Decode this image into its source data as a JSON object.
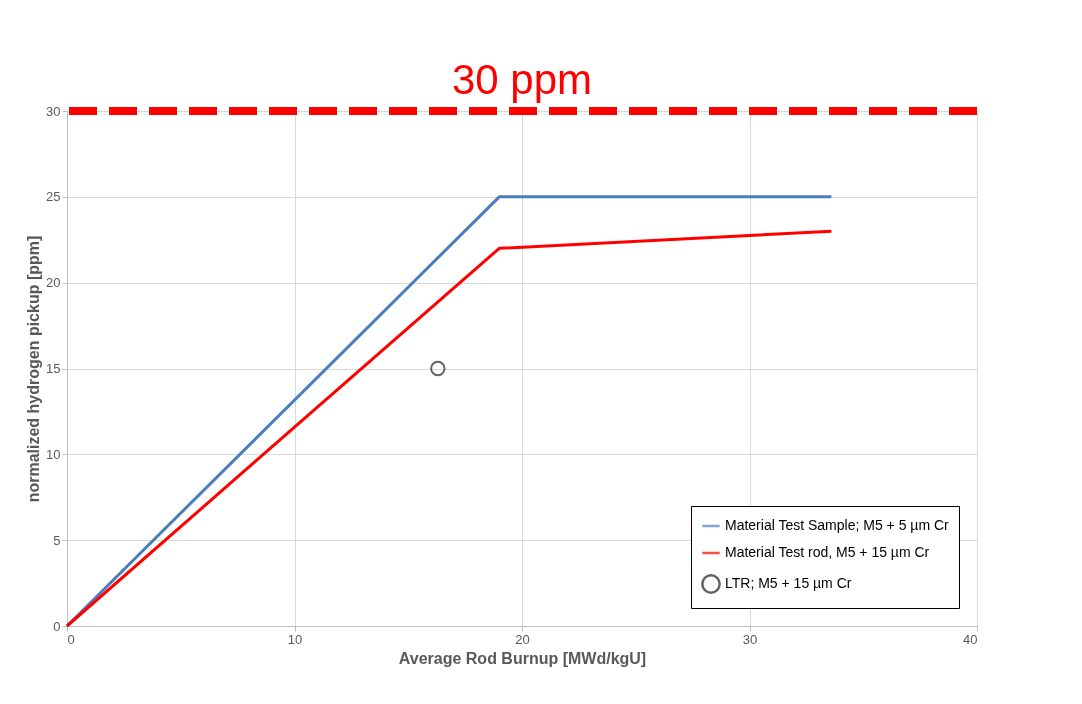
{
  "chart_data": {
    "type": "line",
    "xlabel": "Average Rod Burnup [MWd/kgU]",
    "ylabel": "normalized hydrogen pickup [ppm]",
    "xlim": [
      0,
      40
    ],
    "xticks": [
      0,
      10,
      20,
      30,
      40
    ],
    "ylim": [
      0,
      30
    ],
    "yticks": [
      0,
      5,
      10,
      15,
      20,
      25,
      30
    ],
    "grid": true,
    "legend": "bottom right",
    "series": [
      {
        "name": "Material Test Sample; M5 + 5 µm Cr",
        "color": "#4a7ebb",
        "type": "line",
        "marker": "none",
        "x": [
          0,
          19,
          33.6
        ],
        "values": [
          0,
          25,
          25
        ]
      },
      {
        "name": "Material Test rod, M5 + 15 µm Cr",
        "color": "#ff0000",
        "type": "line",
        "marker": "none",
        "x": [
          0,
          19,
          33.6
        ],
        "values": [
          0,
          22,
          23
        ]
      },
      {
        "name": "LTR; M5 + 15 µm Cr",
        "color": "#222222",
        "type": "scatter",
        "marker": "circle",
        "x": [
          16.3
        ],
        "values": [
          15
        ]
      }
    ],
    "ref_lines": [
      {
        "axis": "y",
        "value": 30,
        "label": "30 ppm",
        "color": "#ff0000",
        "line_style": "dashed"
      }
    ]
  }
}
